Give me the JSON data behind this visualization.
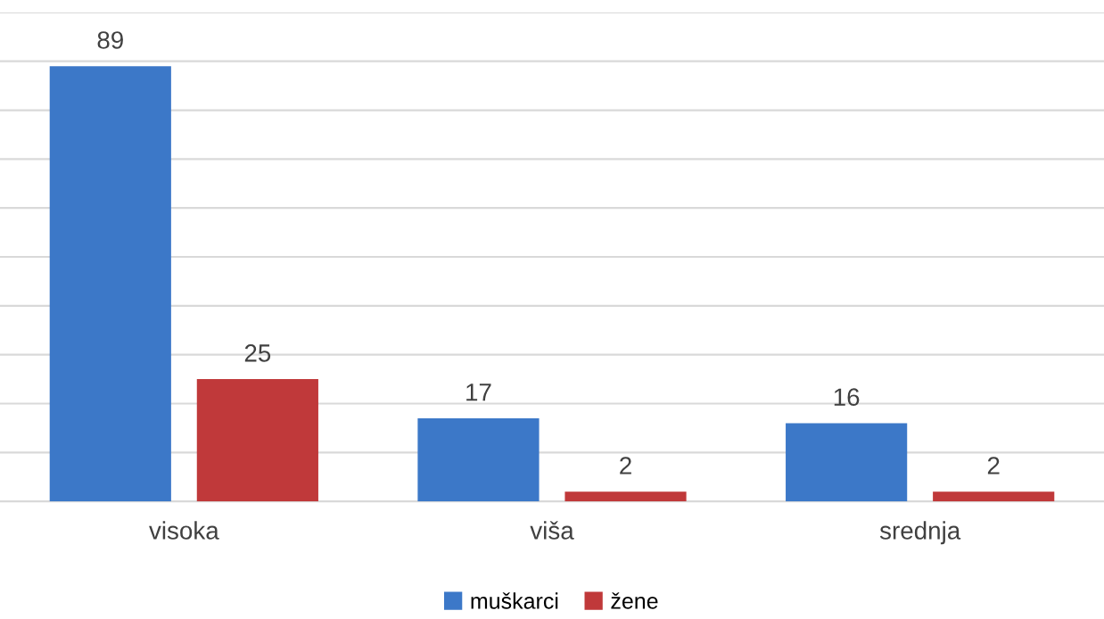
{
  "chart_data": {
    "type": "bar",
    "categories": [
      "visoka",
      "viša",
      "srednja"
    ],
    "series": [
      {
        "name": "muškarci",
        "color": "#3c78c8",
        "values": [
          89,
          17,
          16
        ]
      },
      {
        "name": "žene",
        "color": "#c0393a",
        "values": [
          25,
          2,
          2
        ]
      }
    ],
    "ylim": [
      0,
      100
    ],
    "yticks": [
      {
        "value": 0,
        "label": null
      },
      {
        "value": 10,
        "label": null
      },
      {
        "value": 20,
        "label": null
      },
      {
        "value": 30,
        "label": null
      },
      {
        "value": 40,
        "label": null
      },
      {
        "value": 50,
        "label": null
      },
      {
        "value": 60,
        "label": null
      },
      {
        "value": 70,
        "label": null
      },
      {
        "value": 80,
        "label": null
      },
      {
        "value": 90,
        "label": null
      },
      {
        "value": 100,
        "label": null
      }
    ],
    "tick_labels": "x",
    "grid": "y",
    "legend": "bottom",
    "data_labels": true
  }
}
